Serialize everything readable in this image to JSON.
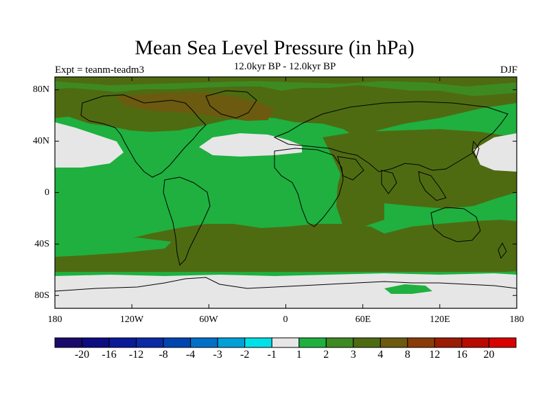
{
  "title": "Mean Sea Level Pressure (in hPa)",
  "subtitle": "12.0kyr BP - 12.0kyr BP",
  "experiment_label": "Expt = teanm-teadm3",
  "season_label": "DJF",
  "lat_labels": [
    "80N",
    "40N",
    "0",
    "40S",
    "80S"
  ],
  "lon_labels": [
    "180",
    "120W",
    "60W",
    "0",
    "60E",
    "120E",
    "180"
  ],
  "colorbar": {
    "labels": [
      "-20",
      "-16",
      "-12",
      "-8",
      "-4",
      "-3",
      "-2",
      "-1",
      "1",
      "2",
      "3",
      "4",
      "8",
      "12",
      "16",
      "20"
    ],
    "colors": [
      "#1a0a6b",
      "#0d0d80",
      "#0a1a99",
      "#0a2aa6",
      "#0044b0",
      "#0070c8",
      "#00a0d8",
      "#00e0e8",
      "#e6e6e6",
      "#1fb040",
      "#3e8a22",
      "#4f6b12",
      "#6b5a10",
      "#8a3c08",
      "#9a1c04",
      "#b80a00",
      "#d80000"
    ]
  },
  "chart_data": {
    "type": "heatmap",
    "title": "Mean Sea Level Pressure (in hPa)",
    "subtitle": "12.0kyr BP - 12.0kyr BP",
    "experiment": "Expt = teanm-teadm3",
    "season": "DJF",
    "projection": "cylindrical equidistant",
    "xlim": [
      -180,
      180
    ],
    "ylim": [
      -90,
      90
    ],
    "contour_levels": [
      -20,
      -16,
      -12,
      -8,
      -4,
      -3,
      -2,
      -1,
      1,
      2,
      3,
      4,
      8,
      12,
      16,
      20
    ],
    "regions": [
      {
        "area": "Southern Ocean 60S-65S band",
        "category": "1 to 2"
      },
      {
        "area": "Antarctica",
        "category": "-1 to 1"
      },
      {
        "area": "North Pacific 25N-45N",
        "category": "-1 to 1"
      },
      {
        "area": "North Atlantic 30N-45N",
        "category": "-1 to 1"
      },
      {
        "area": "Tropical band",
        "category": "1 to 2"
      },
      {
        "area": "Southern midlatitudes 35S-55S",
        "category": "2 to 4"
      },
      {
        "area": "Northern Eurasia and Arctic",
        "category": "3 to 8"
      },
      {
        "area": "Central Asia",
        "category": "4 to 8"
      }
    ]
  }
}
